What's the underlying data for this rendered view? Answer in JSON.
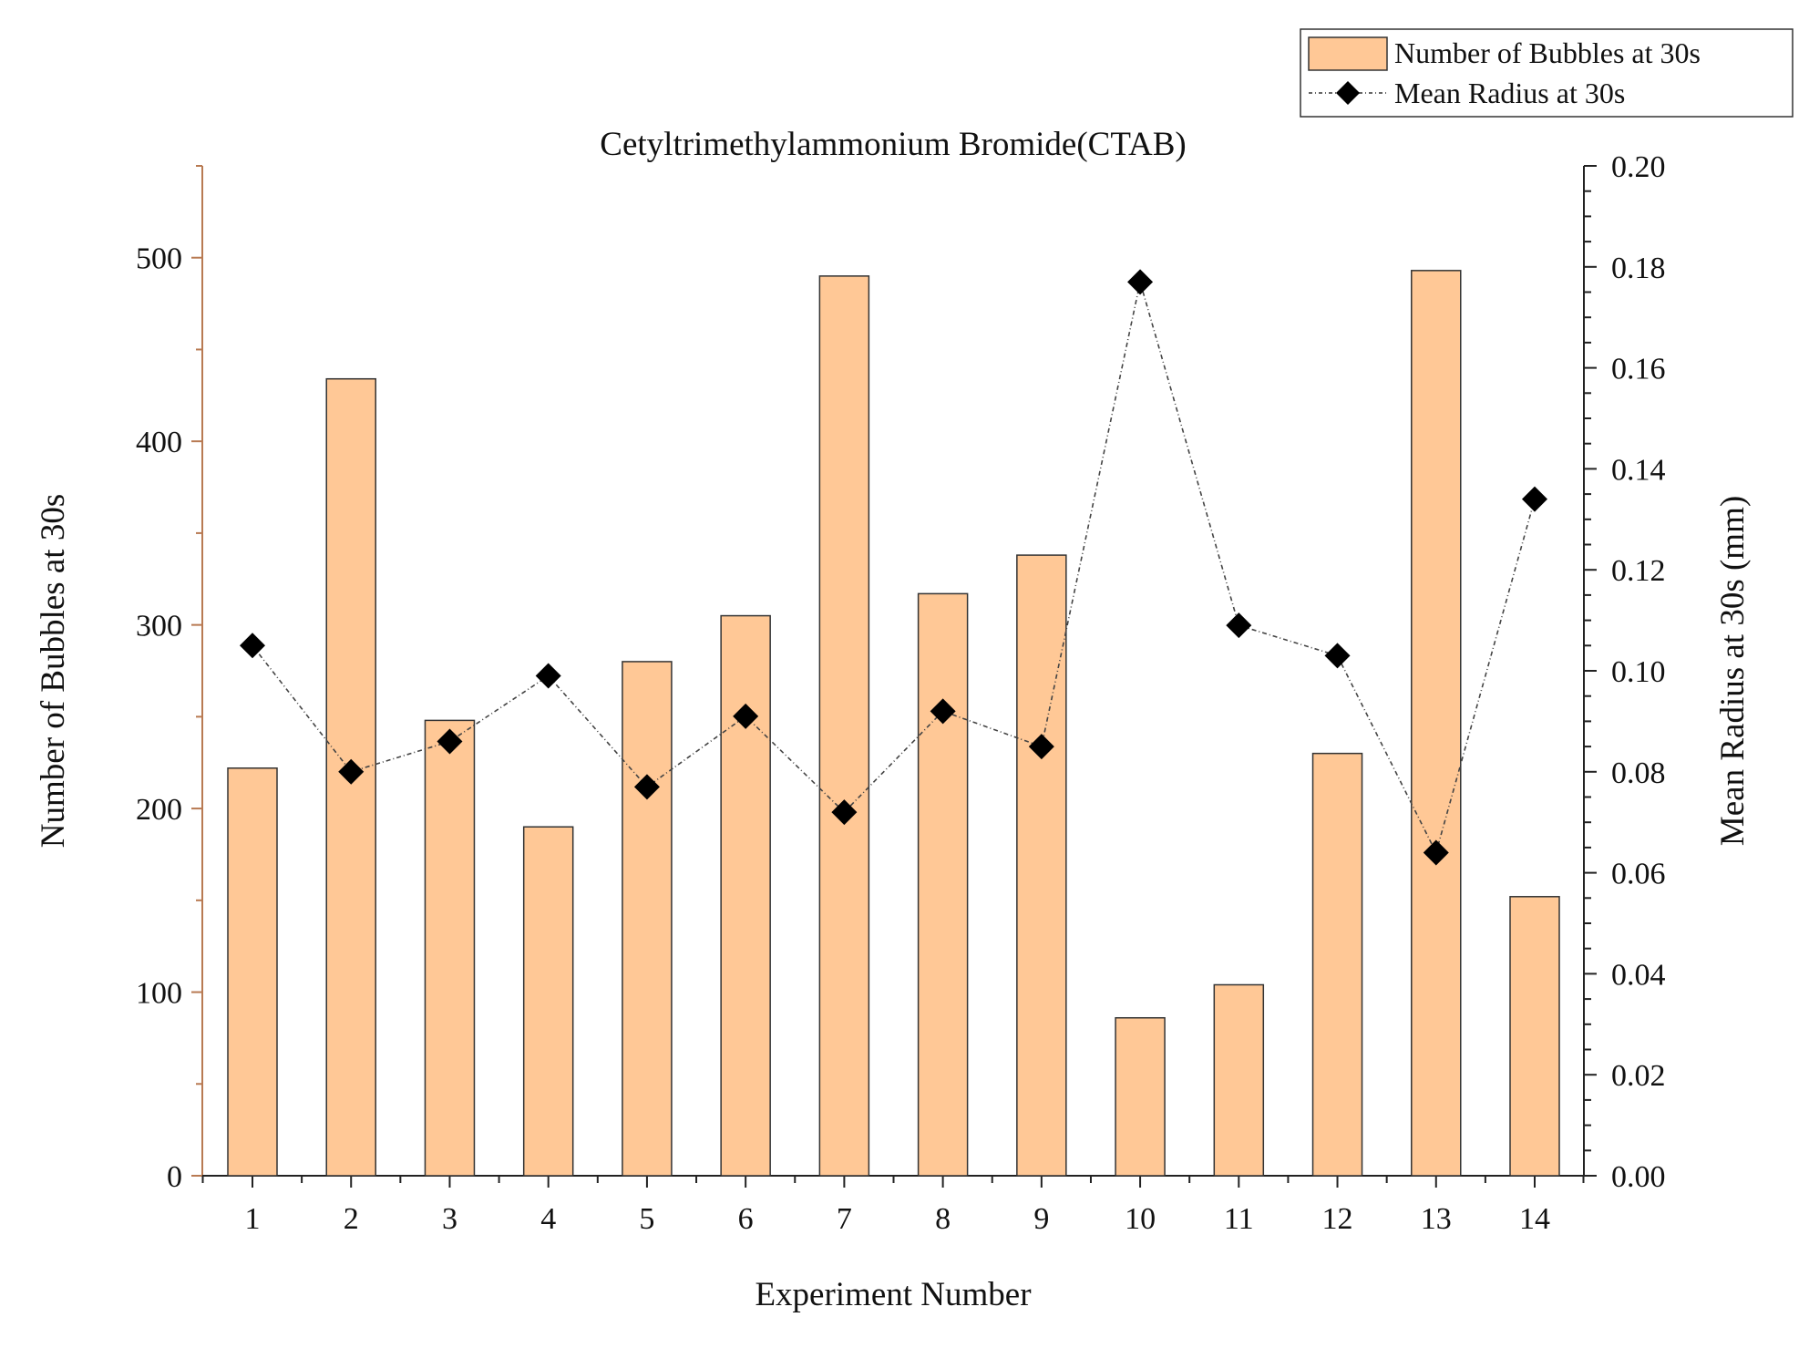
{
  "chart_data": {
    "type": "bar",
    "title": "Cetyltrimethylammonium Bromide(CTAB)",
    "xlabel": "Experiment Number",
    "ylabel": "Number of Bubbles at 30s",
    "y2label": "Mean Radius at 30s (mm)",
    "categories": [
      "1",
      "2",
      "3",
      "4",
      "5",
      "6",
      "7",
      "8",
      "9",
      "10",
      "11",
      "12",
      "13",
      "14"
    ],
    "ylim": [
      0,
      550
    ],
    "y2lim": [
      0,
      0.2
    ],
    "yticks": [
      "0",
      "100",
      "200",
      "300",
      "400",
      "500"
    ],
    "y2ticks": [
      "0.00",
      "0.02",
      "0.04",
      "0.06",
      "0.08",
      "0.10",
      "0.12",
      "0.14",
      "0.16",
      "0.18",
      "0.20"
    ],
    "legend_position": "top-right",
    "series": [
      {
        "name": "Number of Bubbles at 30s",
        "type": "bar",
        "axis": "left",
        "color": "#FFC896",
        "values": [
          222,
          434,
          248,
          190,
          280,
          305,
          490,
          317,
          338,
          86,
          104,
          230,
          493,
          152
        ]
      },
      {
        "name": "Mean Radius at 30s",
        "type": "line",
        "axis": "right",
        "color": "#000000",
        "marker": "diamond",
        "line_style": "dash-dot",
        "values": [
          0.105,
          0.08,
          0.086,
          0.099,
          0.077,
          0.091,
          0.072,
          0.092,
          0.085,
          0.177,
          0.109,
          0.103,
          0.064,
          0.134
        ]
      }
    ]
  }
}
